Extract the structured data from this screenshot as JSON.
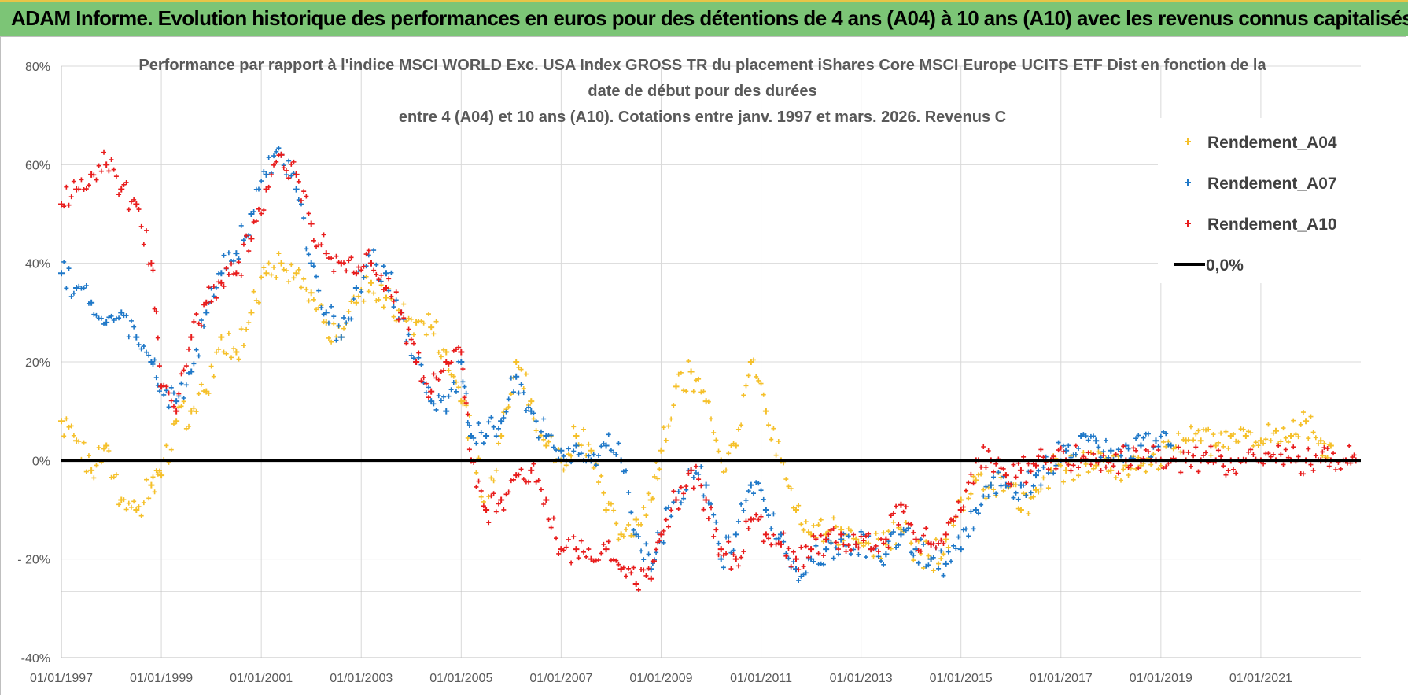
{
  "banner": {
    "text": "ADAM Informe. Evolution historique des performances en euros pour des détentions de 4 ans (A04) à 10 ans (A10) avec les revenus connus capitalisés"
  },
  "chart_data": {
    "type": "scatter",
    "title_lines": [
      "Performance par rapport à l'indice MSCI WORLD Exc. USA Index GROSS TR  du placement iShares Core MSCI Europe UCITS ETF Dist en fonction de la",
      "date de début pour des durées",
      "entre 4 (A04) et 10 ans (A10). Cotations entre janv. 1997 et mars. 2026. Revenus C"
    ],
    "x_tick_labels": [
      "01/01/1997",
      "01/01/1999",
      "01/01/2001",
      "01/01/2003",
      "01/01/2005",
      "01/01/2007",
      "01/01/2009",
      "01/01/2011",
      "01/01/2013",
      "01/01/2015",
      "01/01/2017",
      "01/01/2019",
      "01/01/2021"
    ],
    "xlim": [
      1997.0,
      2023.0
    ],
    "y_tick_labels": [
      "80%",
      "60%",
      "40%",
      "20%",
      "0%",
      "- 20%",
      "-40%"
    ],
    "ylim": [
      -40,
      80
    ],
    "grid": true,
    "legend_position": "top-right",
    "reference_line": {
      "name": "0,0%",
      "value": 0,
      "color": "#000000"
    },
    "series": [
      {
        "name": "Rendement_A04",
        "color": "#f5c02a",
        "x": [
          1997.0,
          1997.3,
          1997.6,
          1997.9,
          1998.2,
          1998.5,
          1998.8,
          1999.0,
          1999.3,
          1999.6,
          1999.9,
          2000.2,
          2000.5,
          2000.8,
          2001.1,
          2001.4,
          2001.7,
          2002.0,
          2002.3,
          2002.6,
          2002.9,
          2003.2,
          2003.5,
          2003.8,
          2004.1,
          2004.4,
          2004.7,
          2005.0,
          2005.2,
          2005.5,
          2005.8,
          2006.1,
          2006.4,
          2006.7,
          2007.0,
          2007.3,
          2007.6,
          2007.9,
          2008.2,
          2008.5,
          2008.8,
          2009.0,
          2009.3,
          2009.6,
          2009.9,
          2010.2,
          2010.5,
          2010.8,
          2011.1,
          2011.4,
          2011.7,
          2012.0,
          2012.3,
          2012.6,
          2012.9,
          2013.2,
          2013.5,
          2013.8,
          2014.1,
          2014.4,
          2014.7,
          2015.0,
          2015.3,
          2015.6,
          2015.9,
          2016.2,
          2016.5,
          2016.8,
          2017.1,
          2017.4,
          2017.7,
          2018.0,
          2018.3,
          2018.6,
          2018.9,
          2019.2,
          2019.5,
          2019.8,
          2020.1,
          2020.4,
          2020.7,
          2021.0,
          2021.3,
          2021.6,
          2021.9,
          2022.2,
          2022.4
        ],
        "y": [
          8,
          4,
          -2,
          3,
          -8,
          -10,
          -5,
          -3,
          8,
          10,
          14,
          25,
          22,
          30,
          38,
          40,
          38,
          34,
          28,
          25,
          32,
          36,
          33,
          30,
          28,
          27,
          22,
          12,
          5,
          -10,
          5,
          20,
          12,
          3,
          0,
          5,
          2,
          -10,
          -15,
          -12,
          -8,
          2,
          15,
          18,
          12,
          0,
          3,
          20,
          10,
          0,
          -10,
          -15,
          -15,
          -14,
          -16,
          -18,
          -17,
          -14,
          -18,
          -20,
          -16,
          -8,
          -4,
          -5,
          -3,
          -10,
          -6,
          -2,
          -2,
          0,
          -1,
          -2,
          -1,
          -1,
          0,
          3,
          4,
          4,
          3,
          5,
          5,
          4,
          6,
          5,
          8,
          4,
          3
        ]
      },
      {
        "name": "Rendement_A07",
        "color": "#1f78c8",
        "x": [
          1997.0,
          1997.3,
          1997.6,
          1997.9,
          1998.2,
          1998.5,
          1998.8,
          1999.0,
          1999.3,
          1999.6,
          1999.9,
          2000.2,
          2000.5,
          2000.8,
          2001.1,
          2001.4,
          2001.7,
          2002.0,
          2002.3,
          2002.6,
          2002.9,
          2003.2,
          2003.5,
          2003.8,
          2004.1,
          2004.4,
          2004.7,
          2005.0,
          2005.2,
          2005.5,
          2005.8,
          2006.1,
          2006.4,
          2006.7,
          2007.0,
          2007.3,
          2007.6,
          2007.9,
          2008.2,
          2008.5,
          2008.8,
          2009.0,
          2009.3,
          2009.6,
          2009.9,
          2010.2,
          2010.5,
          2010.8,
          2011.1,
          2011.4,
          2011.7,
          2012.0,
          2012.3,
          2012.6,
          2012.9,
          2013.2,
          2013.5,
          2013.8,
          2014.1,
          2014.4,
          2014.7,
          2015.0,
          2015.3,
          2015.6,
          2015.9,
          2016.2,
          2016.5,
          2016.8,
          2017.1,
          2017.4,
          2017.7,
          2018.0,
          2018.3,
          2018.6,
          2018.9,
          2019.2
        ],
        "y": [
          38,
          35,
          32,
          28,
          30,
          25,
          20,
          15,
          12,
          18,
          30,
          38,
          42,
          50,
          58,
          62,
          55,
          40,
          30,
          25,
          35,
          40,
          38,
          30,
          20,
          12,
          10,
          20,
          5,
          5,
          8,
          17,
          10,
          5,
          2,
          3,
          0,
          3,
          0,
          -15,
          -22,
          -15,
          -8,
          -2,
          -5,
          -20,
          -15,
          -5,
          -10,
          -15,
          -22,
          -20,
          -18,
          -16,
          -17,
          -18,
          -19,
          -15,
          -18,
          -20,
          -21,
          -18,
          -10,
          -5,
          -5,
          -5,
          -3,
          0,
          2,
          5,
          4,
          2,
          3,
          3,
          4,
          3
        ]
      },
      {
        "name": "Rendement_A10",
        "color": "#e81c1c",
        "x": [
          1997.0,
          1997.3,
          1997.6,
          1997.9,
          1998.2,
          1998.5,
          1998.8,
          1999.0,
          1999.3,
          1999.6,
          1999.9,
          2000.2,
          2000.5,
          2000.8,
          2001.1,
          2001.4,
          2001.7,
          2002.0,
          2002.3,
          2002.6,
          2002.9,
          2003.2,
          2003.5,
          2003.8,
          2004.1,
          2004.4,
          2004.7,
          2005.0,
          2005.2,
          2005.5,
          2005.8,
          2006.1,
          2006.4,
          2006.7,
          2007.0,
          2007.3,
          2007.6,
          2007.9,
          2008.2,
          2008.5,
          2008.8,
          2009.0,
          2009.3,
          2009.6,
          2009.9,
          2010.2,
          2010.5,
          2010.8,
          2011.1,
          2011.4,
          2011.7,
          2012.0,
          2012.3,
          2012.6,
          2012.9,
          2013.2,
          2013.5,
          2013.8,
          2014.1,
          2014.4,
          2014.7,
          2015.0,
          2015.3,
          2015.6,
          2015.9,
          2016.2,
          2016.5,
          2016.8,
          2017.1,
          2017.4,
          2017.7,
          2018.0,
          2018.3,
          2018.6,
          2018.9,
          2019.2,
          2019.5,
          2019.8,
          2020.1,
          2020.4,
          2020.7,
          2021.0,
          2021.3,
          2021.6,
          2021.9,
          2022.2,
          2022.4,
          2022.7,
          2022.9
        ],
        "y": [
          52,
          55,
          58,
          60,
          55,
          52,
          40,
          15,
          10,
          25,
          32,
          36,
          38,
          45,
          55,
          62,
          58,
          48,
          42,
          40,
          38,
          40,
          35,
          30,
          20,
          14,
          20,
          22,
          0,
          -10,
          -8,
          -3,
          -2,
          -8,
          -18,
          -18,
          -20,
          -18,
          -22,
          -25,
          -24,
          -15,
          -8,
          -2,
          -8,
          -18,
          -20,
          -12,
          -15,
          -17,
          -20,
          -18,
          -16,
          -15,
          -17,
          -18,
          -16,
          -9,
          -16,
          -17,
          -15,
          -10,
          0,
          0,
          -3,
          -2,
          -1,
          0,
          0,
          0,
          0,
          0,
          0,
          0,
          0,
          0,
          0,
          0,
          0,
          0,
          0,
          0,
          0,
          0,
          0,
          0,
          0,
          0,
          0
        ]
      }
    ]
  }
}
